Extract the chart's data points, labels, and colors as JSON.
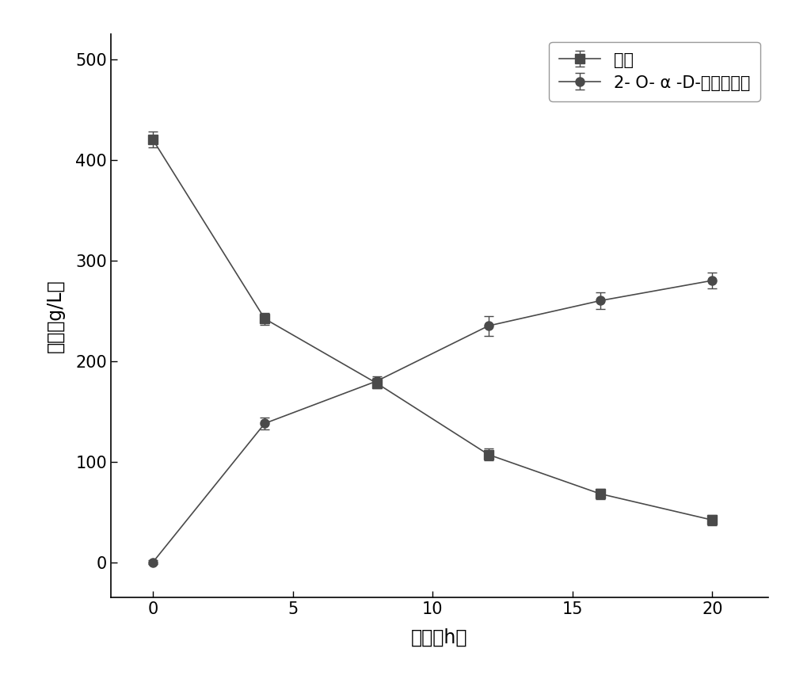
{
  "sucrose_x": [
    0,
    4,
    8,
    12,
    16,
    20
  ],
  "sucrose_y": [
    420,
    242,
    178,
    107,
    68,
    42
  ],
  "sucrose_yerr": [
    8,
    6,
    5,
    6,
    5,
    5
  ],
  "product_x": [
    0,
    4,
    8,
    12,
    16,
    20
  ],
  "product_y": [
    0,
    138,
    180,
    235,
    260,
    280
  ],
  "product_yerr": [
    2,
    6,
    5,
    10,
    8,
    8
  ],
  "sucrose_label": "蔗糖",
  "product_label": "2- O- α -D-甘油葡糖苷",
  "xlabel": "时间（h）",
  "ylabel": "浓度（g/L）",
  "xlim": [
    -1.5,
    22
  ],
  "ylim": [
    -35,
    525
  ],
  "xticks": [
    0,
    5,
    10,
    15,
    20
  ],
  "yticks": [
    0,
    100,
    200,
    300,
    400,
    500
  ],
  "line_color": "#4a4a4a",
  "marker_square": "s",
  "marker_circle": "o",
  "markersize": 8,
  "linewidth": 1.2,
  "capsize": 4,
  "legend_fontsize": 15,
  "axis_fontsize": 17,
  "tick_fontsize": 15
}
